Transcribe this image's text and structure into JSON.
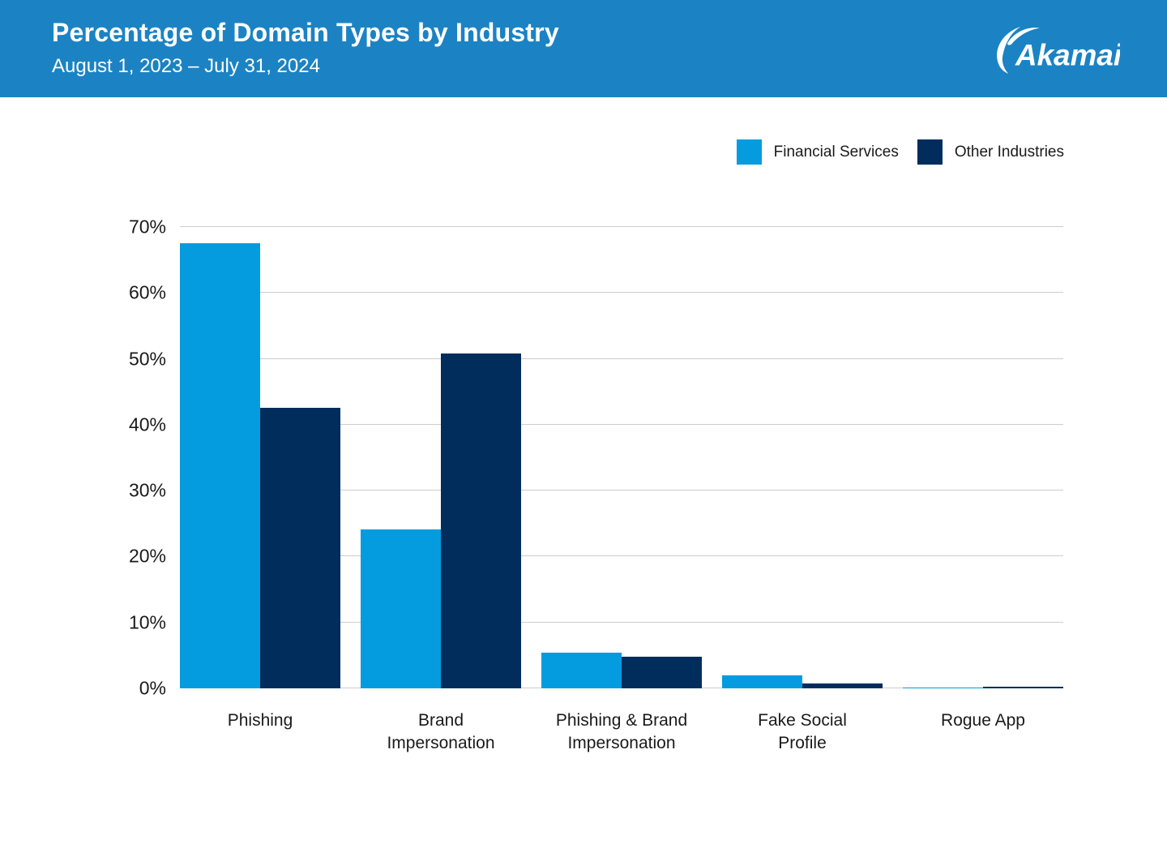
{
  "header": {
    "title": "Percentage of Domain Types by Industry",
    "subtitle": "August 1, 2023 – July 31, 2024",
    "logo_text": "Akamai"
  },
  "colors": {
    "header_bg": "#1B83C4",
    "financial_services": "#049CDE",
    "other_industries": "#002D5C",
    "gridline": "#CDCDCD",
    "text": "#1A1A1A",
    "white": "#FFFFFF"
  },
  "legend": {
    "items": [
      {
        "label": "Financial Services",
        "color": "#049CDE"
      },
      {
        "label": "Other Industries",
        "color": "#002D5C"
      }
    ]
  },
  "chart_data": {
    "type": "bar",
    "title": "Percentage of Domain Types by Industry",
    "subtitle": "August 1, 2023 – July 31, 2024",
    "categories": [
      "Phishing",
      "Brand\nImpersonation",
      "Phishing & Brand\nImpersonation",
      "Fake Social\nProfile",
      "Rogue App"
    ],
    "series": [
      {
        "name": "Financial Services",
        "color": "#049CDE",
        "values": [
          67.6,
          24.1,
          5.4,
          2.0,
          0.1
        ]
      },
      {
        "name": "Other Industries",
        "color": "#002D5C",
        "values": [
          42.6,
          50.8,
          4.8,
          0.7,
          0.2
        ]
      }
    ],
    "xlabel": "",
    "ylabel": "",
    "ylim": [
      0,
      70
    ],
    "yticks": [
      0,
      10,
      20,
      30,
      40,
      50,
      60,
      70
    ],
    "ytick_labels": [
      "0%",
      "10%",
      "20%",
      "30%",
      "40%",
      "50%",
      "60%",
      "70%"
    ],
    "grid": true,
    "legend_position": "top-right"
  }
}
